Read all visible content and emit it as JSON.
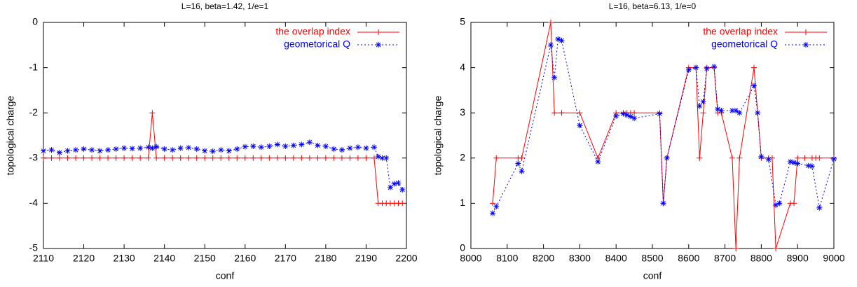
{
  "chart_data": [
    {
      "type": "line",
      "title": "L=16, beta=1.42, 1/e=1",
      "xlabel": "conf",
      "ylabel": "topological charge",
      "xlim": [
        2110,
        2200
      ],
      "ylim": [
        -5,
        0
      ],
      "xticks": [
        2110,
        2120,
        2130,
        2140,
        2150,
        2160,
        2170,
        2180,
        2190,
        2200
      ],
      "yticks": [
        -5,
        -4,
        -3,
        -2,
        -1,
        0
      ],
      "legend": "top-right",
      "series": [
        {
          "name": "the overlap index",
          "color": "#ff0000",
          "marker": "plus",
          "dash": false,
          "x": [
            2110,
            2112,
            2114,
            2116,
            2118,
            2120,
            2122,
            2124,
            2126,
            2128,
            2130,
            2132,
            2134,
            2136,
            2137,
            2138,
            2140,
            2142,
            2144,
            2146,
            2148,
            2150,
            2152,
            2154,
            2156,
            2158,
            2160,
            2162,
            2164,
            2166,
            2168,
            2170,
            2172,
            2174,
            2176,
            2178,
            2180,
            2182,
            2184,
            2186,
            2188,
            2190,
            2192,
            2193,
            2194,
            2195,
            2196,
            2197,
            2198,
            2199
          ],
          "values": [
            -3,
            -3,
            -3,
            -3,
            -3,
            -3,
            -3,
            -3,
            -3,
            -3,
            -3,
            -3,
            -3,
            -3,
            -2,
            -3,
            -3,
            -3,
            -3,
            -3,
            -3,
            -3,
            -3,
            -3,
            -3,
            -3,
            -3,
            -3,
            -3,
            -3,
            -3,
            -3,
            -3,
            -3,
            -3,
            -3,
            -3,
            -3,
            -3,
            -3,
            -3,
            -3,
            -3,
            -4,
            -4,
            -4,
            -4,
            -4,
            -4,
            -4
          ]
        },
        {
          "name": "geometorical Q",
          "color": "#0000ff",
          "marker": "star",
          "dash": true,
          "x": [
            2110,
            2112,
            2114,
            2116,
            2118,
            2120,
            2122,
            2124,
            2126,
            2128,
            2130,
            2132,
            2134,
            2136,
            2137,
            2138,
            2140,
            2142,
            2144,
            2146,
            2148,
            2150,
            2152,
            2154,
            2156,
            2158,
            2160,
            2162,
            2164,
            2166,
            2168,
            2170,
            2172,
            2174,
            2176,
            2178,
            2180,
            2182,
            2184,
            2186,
            2188,
            2190,
            2192,
            2193,
            2194,
            2195,
            2196,
            2197,
            2198,
            2199
          ],
          "values": [
            -2.84,
            -2.82,
            -2.88,
            -2.84,
            -2.82,
            -2.8,
            -2.82,
            -2.84,
            -2.82,
            -2.8,
            -2.78,
            -2.79,
            -2.78,
            -2.76,
            -2.78,
            -2.75,
            -2.8,
            -2.82,
            -2.78,
            -2.77,
            -2.8,
            -2.84,
            -2.85,
            -2.82,
            -2.84,
            -2.8,
            -2.75,
            -2.74,
            -2.76,
            -2.74,
            -2.7,
            -2.74,
            -2.72,
            -2.7,
            -2.65,
            -2.72,
            -2.74,
            -2.8,
            -2.82,
            -2.78,
            -2.76,
            -2.78,
            -2.76,
            -2.97,
            -3.0,
            -3.0,
            -3.65,
            -3.57,
            -3.55,
            -3.7
          ]
        }
      ]
    },
    {
      "type": "line",
      "title": "L=16, beta=6.13, 1/e=0",
      "xlabel": "conf",
      "ylabel": "topological charge",
      "xlim": [
        8000,
        9000
      ],
      "ylim": [
        0,
        5
      ],
      "xticks": [
        8000,
        8100,
        8200,
        8300,
        8400,
        8500,
        8600,
        8700,
        8800,
        8900,
        9000
      ],
      "yticks": [
        0,
        1,
        2,
        3,
        4,
        5
      ],
      "legend": "top-right",
      "series": [
        {
          "name": "the overlap index",
          "color": "#ff0000",
          "marker": "plus",
          "dash": false,
          "x": [
            8060,
            8070,
            8130,
            8140,
            8220,
            8230,
            8250,
            8300,
            8350,
            8400,
            8420,
            8430,
            8440,
            8450,
            8520,
            8530,
            8540,
            8600,
            8620,
            8630,
            8640,
            8650,
            8670,
            8680,
            8690,
            8720,
            8730,
            8740,
            8780,
            8790,
            8800,
            8820,
            8830,
            8840,
            8880,
            8890,
            8900,
            8920,
            8940,
            8950,
            8960,
            9000
          ],
          "values": [
            1,
            2,
            2,
            2,
            5,
            3,
            3,
            3,
            2,
            3,
            3,
            3,
            3,
            3,
            3,
            1,
            2,
            4,
            4,
            2,
            3,
            4,
            4,
            3,
            3,
            2,
            0,
            2,
            4,
            3,
            2,
            2,
            2,
            0,
            1,
            1,
            2,
            2,
            2,
            2,
            2,
            2
          ]
        },
        {
          "name": "geometorical Q",
          "color": "#0000ff",
          "marker": "star",
          "dash": true,
          "x": [
            8060,
            8070,
            8130,
            8140,
            8220,
            8230,
            8240,
            8250,
            8300,
            8350,
            8400,
            8420,
            8430,
            8440,
            8450,
            8520,
            8530,
            8540,
            8600,
            8620,
            8630,
            8640,
            8650,
            8670,
            8680,
            8690,
            8720,
            8730,
            8740,
            8780,
            8790,
            8800,
            8820,
            8840,
            8850,
            8880,
            8890,
            8900,
            8930,
            8940,
            8960,
            9000
          ],
          "values": [
            0.78,
            0.93,
            1.88,
            1.71,
            4.5,
            3.78,
            4.63,
            4.6,
            2.72,
            1.92,
            2.93,
            2.98,
            2.95,
            2.92,
            2.88,
            2.98,
            1.0,
            2.0,
            3.95,
            4.0,
            3.15,
            3.25,
            3.98,
            4.02,
            3.08,
            3.05,
            3.05,
            3.05,
            3.0,
            3.6,
            3.0,
            2.03,
            1.97,
            0.96,
            1.0,
            1.92,
            1.9,
            1.88,
            1.83,
            1.82,
            0.9,
            1.98
          ]
        }
      ]
    }
  ]
}
